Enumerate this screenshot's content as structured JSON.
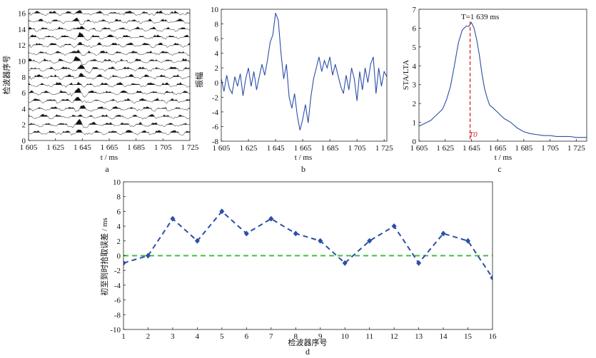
{
  "chart_data": [
    {
      "id": "a",
      "type": "line",
      "panel_label": "a",
      "xlabel": "t / ms",
      "ylabel": "检波器序号",
      "xlim": [
        1605,
        1725
      ],
      "ylim": [
        0,
        16.5
      ],
      "xticks": [
        "1 605",
        "1 625",
        "1 645",
        "1 665",
        "1 685",
        "1 705",
        "1 725"
      ],
      "yticks": [
        "0",
        "2",
        "4",
        "6",
        "8",
        "10",
        "12",
        "14",
        "16"
      ],
      "trace_count": 16,
      "fill_positive": true
    },
    {
      "id": "b",
      "type": "line",
      "panel_label": "b",
      "xlabel": "t / ms",
      "ylabel": "振幅",
      "xlim": [
        1605,
        1727
      ],
      "ylim": [
        -8,
        10
      ],
      "xticks": [
        "1 605",
        "1 625",
        "1 645",
        "1 665",
        "1 685",
        "1 705",
        "1 725"
      ],
      "yticks": [
        "-8",
        "-6",
        "-4",
        "-2",
        "0",
        "2",
        "4",
        "6",
        "8",
        "10"
      ],
      "series": [
        {
          "color": "#2b4fa8",
          "x": [
            1605,
            1607,
            1609,
            1611,
            1613,
            1615,
            1617,
            1619,
            1621,
            1623,
            1625,
            1627,
            1629,
            1631,
            1633,
            1635,
            1637,
            1639,
            1641,
            1643,
            1645,
            1647,
            1649,
            1651,
            1653,
            1655,
            1657,
            1659,
            1661,
            1663,
            1665,
            1667,
            1669,
            1671,
            1673,
            1675,
            1677,
            1679,
            1681,
            1683,
            1685,
            1687,
            1689,
            1691,
            1693,
            1695,
            1697,
            1699,
            1701,
            1703,
            1705,
            1707,
            1709,
            1711,
            1713,
            1715,
            1717,
            1719,
            1721,
            1723,
            1725,
            1727
          ],
          "y": [
            0.5,
            -1.2,
            1.0,
            -0.8,
            -1.5,
            0.8,
            -0.5,
            1.2,
            -1.8,
            0.5,
            2.0,
            -0.5,
            1.5,
            -1.0,
            0.8,
            2.5,
            1.0,
            3.0,
            5.5,
            6.5,
            9.5,
            8.5,
            4.0,
            0.5,
            2.5,
            -2.0,
            -3.5,
            -1.5,
            -4.5,
            -6.5,
            -5.0,
            -3.0,
            -5.5,
            -2.0,
            0.5,
            2.0,
            3.5,
            1.5,
            3.0,
            2.0,
            3.5,
            1.0,
            2.5,
            1.0,
            -0.5,
            -1.5,
            1.0,
            -1.0,
            2.0,
            0.5,
            -2.5,
            1.5,
            -1.0,
            2.0,
            0.0,
            2.5,
            3.5,
            -1.5,
            2.0,
            -0.5,
            1.5,
            0.8
          ]
        }
      ]
    },
    {
      "id": "c",
      "type": "line",
      "panel_label": "c",
      "xlabel": "t / ms",
      "ylabel": "STA/LTA",
      "xlim": [
        1605,
        1733
      ],
      "ylim": [
        0,
        7
      ],
      "xticks": [
        "1 605",
        "1 625",
        "1 645",
        "1 665",
        "1 685",
        "1 705",
        "1 725"
      ],
      "yticks": [
        "0",
        "1",
        "2",
        "3",
        "4",
        "5",
        "6",
        "7"
      ],
      "annotations": {
        "peak": "T=1 639 ms",
        "marker": "T0"
      },
      "marker_x": 1644,
      "series": [
        {
          "color": "#2b4fa8",
          "x": [
            1605,
            1608,
            1611,
            1614,
            1617,
            1620,
            1623,
            1626,
            1629,
            1632,
            1635,
            1638,
            1641,
            1643,
            1645,
            1647,
            1649,
            1651,
            1653,
            1655,
            1657,
            1659,
            1661,
            1664,
            1667,
            1670,
            1675,
            1680,
            1685,
            1690,
            1695,
            1700,
            1705,
            1710,
            1715,
            1720,
            1725,
            1730,
            1733
          ],
          "y": [
            0.8,
            0.9,
            1.0,
            1.1,
            1.3,
            1.5,
            1.7,
            2.2,
            2.9,
            4.0,
            5.2,
            5.9,
            6.1,
            6.1,
            6.3,
            6.0,
            5.4,
            4.6,
            3.6,
            2.8,
            2.3,
            1.9,
            1.8,
            1.6,
            1.4,
            1.2,
            1.0,
            0.7,
            0.5,
            0.4,
            0.35,
            0.3,
            0.3,
            0.25,
            0.25,
            0.25,
            0.2,
            0.2,
            0.2
          ]
        }
      ]
    },
    {
      "id": "d",
      "type": "line",
      "panel_label": "d",
      "xlabel": "检波器序号",
      "ylabel": "初至到时拾取误差 / ms",
      "xlim": [
        1,
        16
      ],
      "ylim": [
        -10,
        10
      ],
      "xticks": [
        "1",
        "2",
        "3",
        "4",
        "5",
        "6",
        "7",
        "8",
        "9",
        "10",
        "11",
        "12",
        "13",
        "14",
        "15",
        "16"
      ],
      "yticks": [
        "-10",
        "-8",
        "-6",
        "-4",
        "-2",
        "0",
        "2",
        "4",
        "6",
        "8",
        "10"
      ],
      "series": [
        {
          "color": "#2b4fa8",
          "style": "dashed",
          "x": [
            1,
            2,
            3,
            4,
            5,
            6,
            7,
            8,
            9,
            10,
            11,
            12,
            13,
            14,
            15,
            16
          ],
          "y": [
            -1,
            0,
            5,
            2,
            6,
            3,
            5,
            3,
            2,
            -1,
            2,
            4,
            -1,
            3,
            2,
            -3
          ]
        },
        {
          "color": "#44bb44",
          "style": "dashed",
          "x": [
            1,
            16
          ],
          "y": [
            0,
            0
          ]
        }
      ]
    }
  ]
}
